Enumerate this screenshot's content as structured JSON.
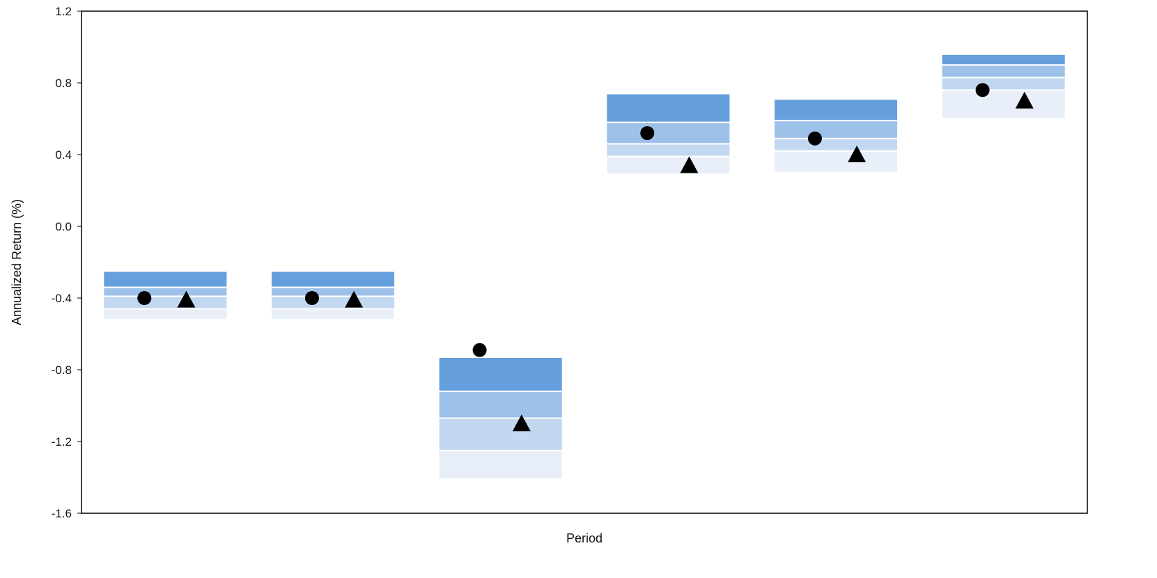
{
  "chart_data": {
    "type": "floating-bar",
    "title": "",
    "xlabel": "Period",
    "ylabel": "Annualized Return (%)",
    "ylim": [
      -1.6,
      1.2
    ],
    "yticks": [
      1.2,
      0.8,
      0.4,
      0.0,
      -0.4,
      -0.8,
      -1.2,
      -1.6
    ],
    "ytick_labels": [
      "1.2",
      "0.8",
      "0.4",
      "0.0",
      "-0.4",
      "-0.8",
      "-1.2",
      "-1.6"
    ],
    "grid": false,
    "legend": "none",
    "band_colors": [
      "#e8eff8",
      "#c2d8f1",
      "#9ec1ea",
      "#659fdd"
    ],
    "marker_color": "#000000",
    "groups": [
      {
        "bounds": [
          -0.52,
          -0.46,
          -0.39,
          -0.34,
          -0.25
        ],
        "circle": -0.4,
        "triangle": -0.41
      },
      {
        "bounds": [
          -0.52,
          -0.46,
          -0.39,
          -0.34,
          -0.25
        ],
        "circle": -0.4,
        "triangle": -0.41
      },
      {
        "bounds": [
          -1.41,
          -1.25,
          -1.07,
          -0.92,
          -0.73
        ],
        "circle": -0.69,
        "triangle": -1.1
      },
      {
        "bounds": [
          0.29,
          0.39,
          0.46,
          0.58,
          0.74
        ],
        "circle": 0.52,
        "triangle": 0.34
      },
      {
        "bounds": [
          0.3,
          0.42,
          0.49,
          0.59,
          0.71
        ],
        "circle": 0.49,
        "triangle": 0.4
      },
      {
        "bounds": [
          0.6,
          0.76,
          0.83,
          0.9,
          0.96
        ],
        "circle": 0.76,
        "triangle": 0.7
      }
    ]
  }
}
